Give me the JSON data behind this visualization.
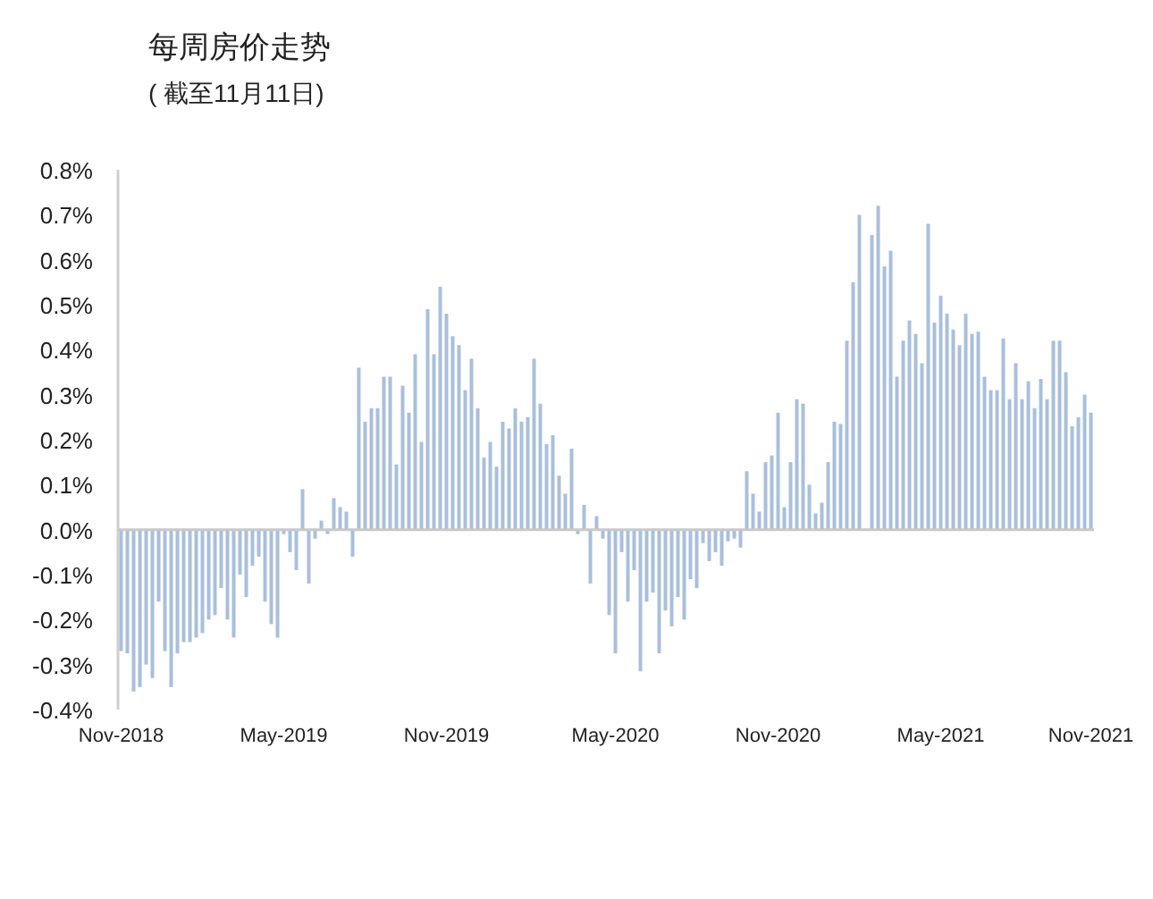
{
  "chart_data": {
    "type": "bar",
    "title": "每周房价走势",
    "subtitle": "( 截至11月11日)",
    "categories": [
      "Nov-2018",
      null,
      null,
      null,
      null,
      null,
      null,
      null,
      null,
      null,
      null,
      null,
      null,
      null,
      null,
      null,
      null,
      null,
      null,
      null,
      null,
      null,
      null,
      null,
      null,
      null,
      "May-2019",
      null,
      null,
      null,
      null,
      null,
      null,
      null,
      null,
      null,
      null,
      null,
      null,
      null,
      null,
      null,
      null,
      null,
      null,
      null,
      null,
      null,
      null,
      null,
      null,
      null,
      "Nov-2019",
      null,
      null,
      null,
      null,
      null,
      null,
      null,
      null,
      null,
      null,
      null,
      null,
      null,
      null,
      null,
      null,
      null,
      null,
      null,
      null,
      null,
      null,
      null,
      null,
      null,
      null,
      "May-2020",
      null,
      null,
      null,
      null,
      null,
      null,
      null,
      null,
      null,
      null,
      null,
      null,
      null,
      null,
      null,
      null,
      null,
      null,
      null,
      null,
      null,
      null,
      null,
      null,
      null,
      "Nov-2020",
      null,
      null,
      null,
      null,
      null,
      null,
      null,
      null,
      null,
      null,
      null,
      null,
      null,
      null,
      null,
      null,
      null,
      null,
      null,
      null,
      null,
      null,
      null,
      null,
      null,
      "May-2021",
      null,
      null,
      null,
      null,
      null,
      null,
      null,
      null,
      null,
      null,
      null,
      null,
      null,
      null,
      null,
      null,
      null,
      null,
      null,
      null,
      null,
      null,
      null,
      "Nov-2021"
    ],
    "values": [
      -0.27,
      -0.275,
      -0.36,
      -0.35,
      -0.3,
      -0.33,
      -0.16,
      -0.27,
      -0.35,
      -0.275,
      -0.25,
      -0.25,
      -0.24,
      -0.23,
      -0.2,
      -0.19,
      -0.13,
      -0.2,
      -0.24,
      -0.1,
      -0.15,
      -0.08,
      -0.06,
      -0.16,
      -0.21,
      -0.24,
      -0.01,
      -0.05,
      -0.09,
      0.09,
      -0.12,
      -0.02,
      0.02,
      -0.01,
      0.07,
      0.05,
      0.04,
      -0.06,
      0.36,
      0.24,
      0.27,
      0.27,
      0.34,
      0.34,
      0.145,
      0.32,
      0.26,
      0.39,
      0.195,
      0.49,
      0.39,
      0.54,
      0.48,
      0.43,
      0.41,
      0.31,
      0.38,
      0.27,
      0.16,
      0.195,
      0.14,
      0.24,
      0.225,
      0.27,
      0.24,
      0.25,
      0.38,
      0.28,
      0.19,
      0.21,
      0.12,
      0.08,
      0.18,
      -0.01,
      0.055,
      -0.12,
      0.03,
      -0.02,
      -0.19,
      -0.275,
      -0.05,
      -0.16,
      -0.09,
      -0.315,
      -0.16,
      -0.14,
      -0.275,
      -0.18,
      -0.215,
      -0.15,
      -0.2,
      -0.11,
      -0.13,
      -0.03,
      -0.07,
      -0.05,
      -0.08,
      -0.026,
      -0.02,
      -0.04,
      0.13,
      0.08,
      0.04,
      0.15,
      0.165,
      0.26,
      0.05,
      0.15,
      0.29,
      0.28,
      0.1,
      0.036,
      0.06,
      0.15,
      0.24,
      0.235,
      0.42,
      0.55,
      0.7,
      null,
      0.655,
      0.72,
      0.585,
      0.62,
      0.34,
      0.42,
      0.465,
      0.435,
      0.37,
      0.68,
      0.46,
      0.52,
      0.48,
      0.445,
      0.41,
      0.48,
      0.435,
      0.44,
      0.34,
      0.31,
      0.31,
      0.425,
      0.29,
      0.37,
      0.29,
      0.33,
      0.27,
      0.335,
      0.29,
      0.42,
      0.42,
      0.35,
      0.23,
      0.25,
      0.3,
      0.26
    ],
    "color": "#a9bfdc",
    "ylim": [
      -0.4,
      0.8
    ],
    "yticks": [
      {
        "value": -0.4,
        "label": "-0.4%"
      },
      {
        "value": -0.3,
        "label": "-0.3%"
      },
      {
        "value": -0.2,
        "label": "-0.2%"
      },
      {
        "value": -0.1,
        "label": "-0.1%"
      },
      {
        "value": 0,
        "label": "0.0%"
      },
      {
        "value": 0.1,
        "label": "0.1%"
      },
      {
        "value": 0.2,
        "label": "0.2%"
      },
      {
        "value": 0.3,
        "label": "0.3%"
      },
      {
        "value": 0.4,
        "label": "0.4%"
      },
      {
        "value": 0.5,
        "label": "0.5%"
      },
      {
        "value": 0.6,
        "label": "0.6%"
      },
      {
        "value": 0.7,
        "label": "0.7%"
      },
      {
        "value": 0.8,
        "label": "0.8%"
      }
    ],
    "tick_labels": true
  }
}
